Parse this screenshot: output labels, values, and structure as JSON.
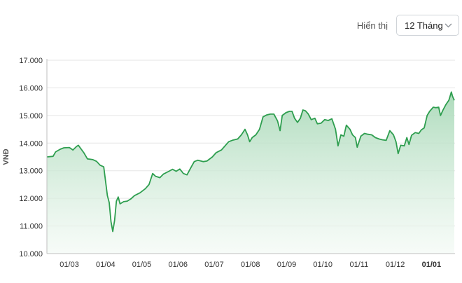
{
  "header": {
    "display_label": "Hiển thị",
    "period_select": {
      "value": "12 Tháng",
      "icon": "chevron-down-icon"
    }
  },
  "chart_data": {
    "type": "area",
    "ylabel": "VNĐ",
    "ylim": [
      10000,
      17000
    ],
    "y_ticks": [
      10000,
      11000,
      12000,
      13000,
      14000,
      15000,
      16000,
      17000
    ],
    "y_tick_labels": [
      "10.000",
      "11.000",
      "12.000",
      "13.000",
      "14.000",
      "15.000",
      "16.000",
      "17.000"
    ],
    "x_tick_labels": [
      "01/03",
      "01/04",
      "01/05",
      "01/06",
      "01/07",
      "01/08",
      "01/09",
      "01/10",
      "01/11",
      "01/12",
      "01/01"
    ],
    "x_tick_bold": [
      false,
      false,
      false,
      false,
      false,
      false,
      false,
      false,
      false,
      false,
      true
    ],
    "x_tick_positions": [
      1,
      2,
      3,
      4,
      5,
      6,
      7,
      8,
      9,
      10,
      11
    ],
    "xlim": [
      0.38,
      11.65
    ],
    "grid": "horizontal",
    "colors": {
      "line": "#2e9e4f",
      "fill_top": "#a9d9b8",
      "fill_bottom": "#f1f9f3",
      "grid": "#e5e5e5",
      "axis": "#bfbfbf"
    },
    "series": [
      {
        "values": [
          [
            0.38,
            13500
          ],
          [
            0.55,
            13520
          ],
          [
            0.62,
            13680
          ],
          [
            0.75,
            13780
          ],
          [
            0.85,
            13830
          ],
          [
            1.0,
            13840
          ],
          [
            1.1,
            13750
          ],
          [
            1.2,
            13880
          ],
          [
            1.25,
            13920
          ],
          [
            1.3,
            13830
          ],
          [
            1.4,
            13650
          ],
          [
            1.5,
            13430
          ],
          [
            1.65,
            13400
          ],
          [
            1.75,
            13340
          ],
          [
            1.85,
            13200
          ],
          [
            1.95,
            13140
          ],
          [
            2.05,
            12100
          ],
          [
            2.1,
            11850
          ],
          [
            2.15,
            11150
          ],
          [
            2.2,
            10800
          ],
          [
            2.25,
            11200
          ],
          [
            2.3,
            11900
          ],
          [
            2.35,
            12050
          ],
          [
            2.4,
            11800
          ],
          [
            2.5,
            11880
          ],
          [
            2.6,
            11900
          ],
          [
            2.7,
            11980
          ],
          [
            2.8,
            12100
          ],
          [
            2.95,
            12200
          ],
          [
            3.1,
            12350
          ],
          [
            3.2,
            12500
          ],
          [
            3.3,
            12900
          ],
          [
            3.38,
            12800
          ],
          [
            3.5,
            12750
          ],
          [
            3.6,
            12880
          ],
          [
            3.75,
            12980
          ],
          [
            3.85,
            13050
          ],
          [
            3.95,
            12980
          ],
          [
            4.05,
            13060
          ],
          [
            4.15,
            12900
          ],
          [
            4.25,
            12850
          ],
          [
            4.35,
            13100
          ],
          [
            4.45,
            13330
          ],
          [
            4.55,
            13380
          ],
          [
            4.7,
            13330
          ],
          [
            4.8,
            13350
          ],
          [
            4.95,
            13500
          ],
          [
            5.05,
            13650
          ],
          [
            5.2,
            13750
          ],
          [
            5.3,
            13900
          ],
          [
            5.4,
            14050
          ],
          [
            5.5,
            14100
          ],
          [
            5.65,
            14150
          ],
          [
            5.75,
            14300
          ],
          [
            5.85,
            14500
          ],
          [
            5.92,
            14300
          ],
          [
            5.98,
            14050
          ],
          [
            6.05,
            14200
          ],
          [
            6.15,
            14300
          ],
          [
            6.25,
            14500
          ],
          [
            6.35,
            14950
          ],
          [
            6.45,
            15020
          ],
          [
            6.55,
            15050
          ],
          [
            6.65,
            15050
          ],
          [
            6.75,
            14800
          ],
          [
            6.82,
            14450
          ],
          [
            6.88,
            15000
          ],
          [
            6.98,
            15100
          ],
          [
            7.08,
            15150
          ],
          [
            7.15,
            15150
          ],
          [
            7.22,
            14900
          ],
          [
            7.3,
            14750
          ],
          [
            7.38,
            14900
          ],
          [
            7.45,
            15200
          ],
          [
            7.52,
            15170
          ],
          [
            7.6,
            15050
          ],
          [
            7.68,
            14850
          ],
          [
            7.78,
            14900
          ],
          [
            7.85,
            14700
          ],
          [
            7.95,
            14720
          ],
          [
            8.05,
            14850
          ],
          [
            8.15,
            14820
          ],
          [
            8.25,
            14880
          ],
          [
            8.35,
            14500
          ],
          [
            8.42,
            13900
          ],
          [
            8.5,
            14300
          ],
          [
            8.58,
            14250
          ],
          [
            8.65,
            14650
          ],
          [
            8.75,
            14500
          ],
          [
            8.82,
            14300
          ],
          [
            8.9,
            14200
          ],
          [
            8.95,
            13850
          ],
          [
            9.05,
            14250
          ],
          [
            9.15,
            14350
          ],
          [
            9.25,
            14320
          ],
          [
            9.35,
            14300
          ],
          [
            9.45,
            14200
          ],
          [
            9.55,
            14150
          ],
          [
            9.65,
            14120
          ],
          [
            9.75,
            14100
          ],
          [
            9.85,
            14450
          ],
          [
            9.95,
            14300
          ],
          [
            10.02,
            14050
          ],
          [
            10.08,
            13620
          ],
          [
            10.15,
            13920
          ],
          [
            10.25,
            13900
          ],
          [
            10.32,
            14200
          ],
          [
            10.38,
            13950
          ],
          [
            10.45,
            14280
          ],
          [
            10.55,
            14380
          ],
          [
            10.65,
            14350
          ],
          [
            10.72,
            14480
          ],
          [
            10.8,
            14550
          ],
          [
            10.88,
            15000
          ],
          [
            10.95,
            15150
          ],
          [
            11.05,
            15300
          ],
          [
            11.12,
            15280
          ],
          [
            11.2,
            15300
          ],
          [
            11.25,
            15000
          ],
          [
            11.32,
            15200
          ],
          [
            11.4,
            15400
          ],
          [
            11.48,
            15550
          ],
          [
            11.55,
            15850
          ],
          [
            11.58,
            15700
          ],
          [
            11.63,
            15550
          ]
        ]
      }
    ]
  }
}
